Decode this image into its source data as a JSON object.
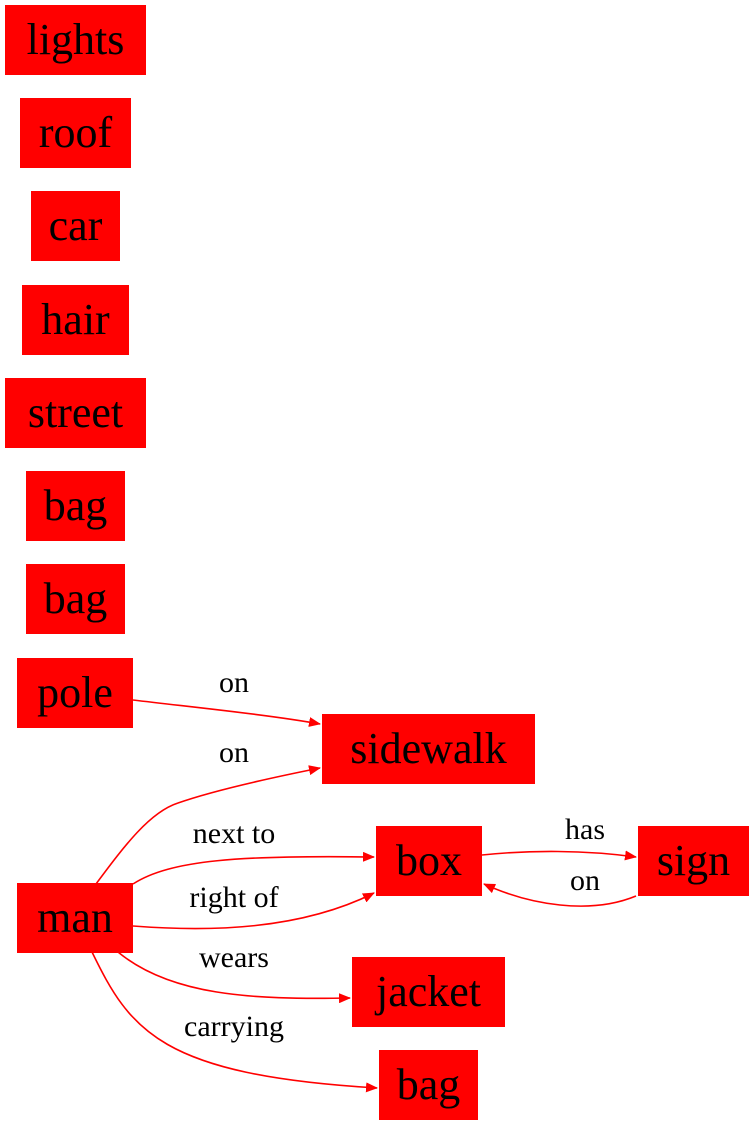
{
  "colors": {
    "node_fill": "#ff0000",
    "edge": "#ff0000",
    "text": "#000000"
  },
  "nodes": {
    "lights": "lights",
    "roof": "roof",
    "car": "car",
    "hair": "hair",
    "street": "street",
    "bag1": "bag",
    "bag2": "bag",
    "pole": "pole",
    "sidewalk": "sidewalk",
    "man": "man",
    "box": "box",
    "sign": "sign",
    "jacket": "jacket",
    "bag3": "bag"
  },
  "edges": [
    {
      "from": "pole",
      "to": "sidewalk",
      "label": "on"
    },
    {
      "from": "man",
      "to": "sidewalk",
      "label": "on"
    },
    {
      "from": "man",
      "to": "box",
      "label": "next to"
    },
    {
      "from": "man",
      "to": "box",
      "label": "right of"
    },
    {
      "from": "box",
      "to": "sign",
      "label": "has"
    },
    {
      "from": "sign",
      "to": "box",
      "label": "on"
    },
    {
      "from": "man",
      "to": "jacket",
      "label": "wears"
    },
    {
      "from": "man",
      "to": "bag3",
      "label": "carrying"
    }
  ]
}
